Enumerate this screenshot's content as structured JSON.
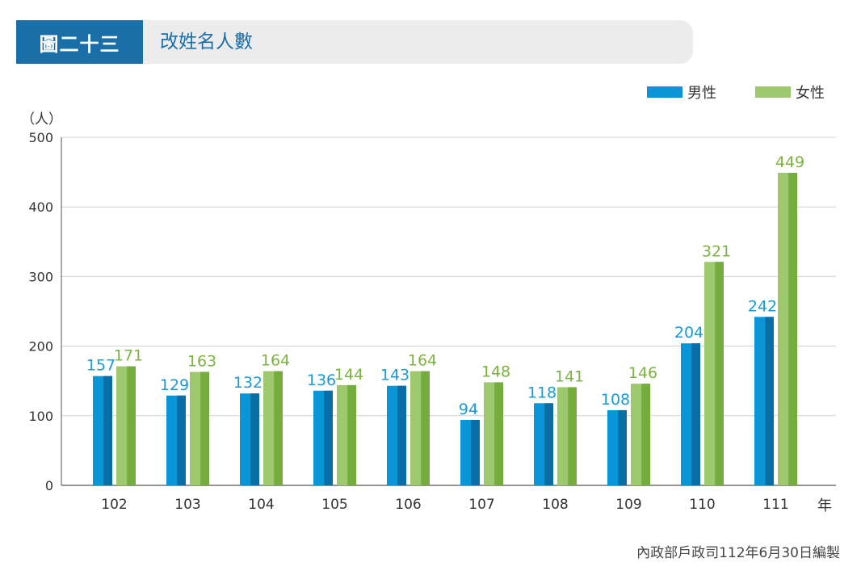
{
  "header": {
    "badge": "圖二十三",
    "title": "改姓名人數"
  },
  "legend": {
    "male_label": "男性",
    "female_label": "女性"
  },
  "unit_label": "（人）",
  "year_unit": "年",
  "source_note": "內政部戶政司112年6月30日編製",
  "colors": {
    "header_bg": "#1a6fa8",
    "male": "#0a96d6",
    "male_dark": "#0a6ea6",
    "female": "#9dc86e",
    "female_dark": "#74ac3e",
    "male_label": "#1a9ad6",
    "female_label": "#7cb342"
  },
  "chart_data": {
    "type": "bar",
    "categories": [
      "102",
      "103",
      "104",
      "105",
      "106",
      "107",
      "108",
      "109",
      "110",
      "111"
    ],
    "series": [
      {
        "name": "男性",
        "values": [
          157,
          129,
          132,
          136,
          143,
          94,
          118,
          108,
          204,
          242
        ]
      },
      {
        "name": "女性",
        "values": [
          171,
          163,
          164,
          144,
          164,
          148,
          141,
          146,
          321,
          449
        ]
      }
    ],
    "title": "改姓名人數",
    "xlabel": "年",
    "ylabel": "（人）",
    "ylim": [
      0,
      500
    ],
    "yticks": [
      "0",
      "100",
      "200",
      "300",
      "400",
      "500"
    ],
    "grid": true,
    "legend_position": "top-right",
    "data_labels": true
  }
}
